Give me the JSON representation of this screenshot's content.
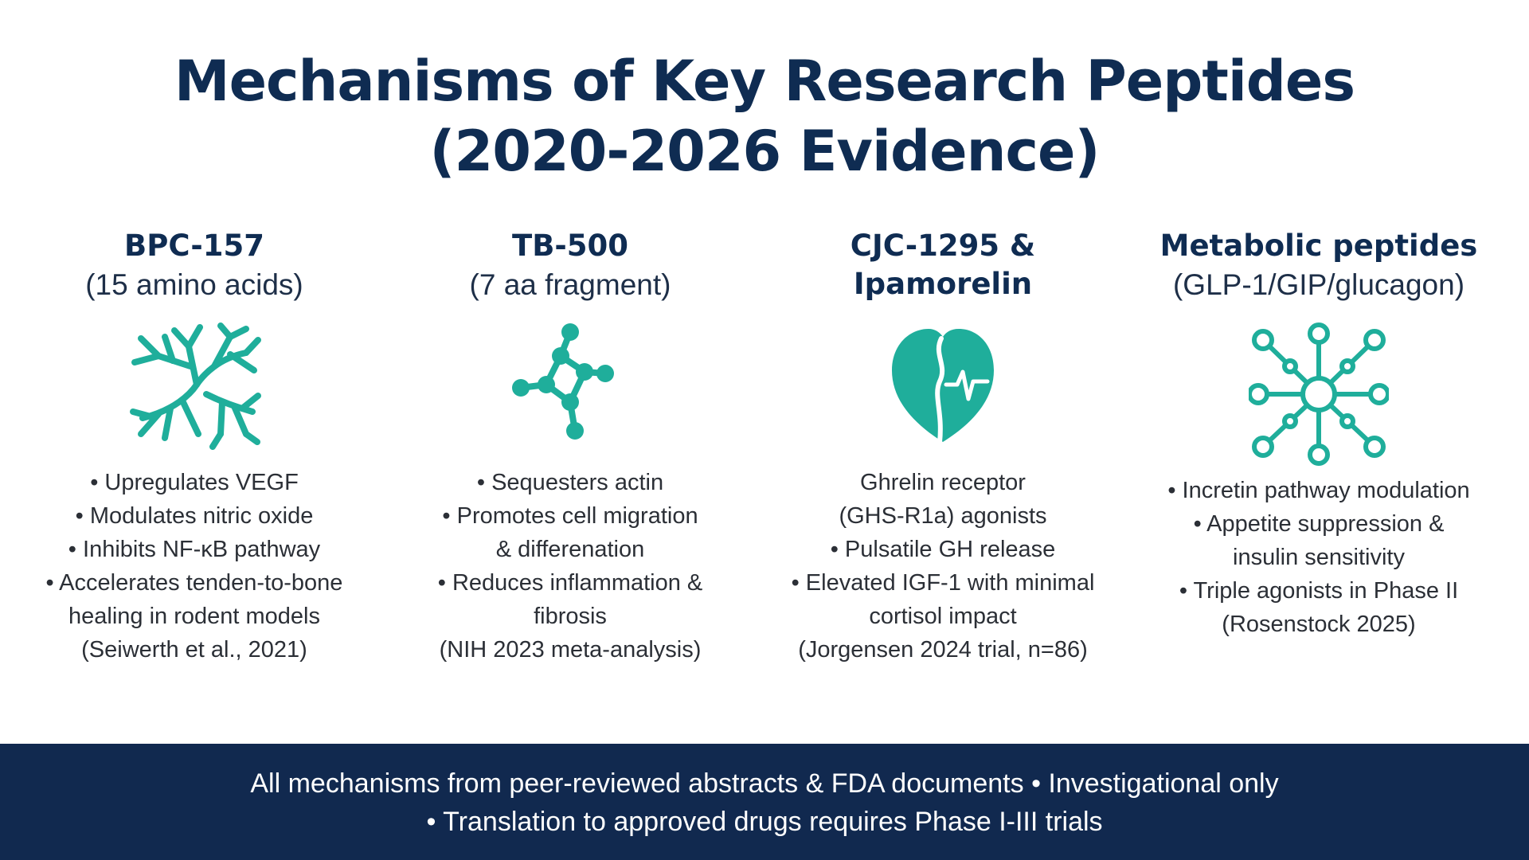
{
  "title": {
    "line1": "Mechanisms of Key Research Peptides",
    "line2": "(2020-2026 Evidence)"
  },
  "columns": [
    {
      "name": "BPC-157",
      "subtitle": "(15 amino acids)",
      "icon": "branching-neuron-icon",
      "bullets": [
        "• Upregulates VEGF",
        "• Modulates nitric oxide",
        "• Inhibits NF-κB pathway",
        "• Accelerates tenden-to-bone",
        "healing in rodent models",
        "(Seiwerth et al., 2021)"
      ]
    },
    {
      "name": "TB-500",
      "subtitle": "(7 aa fragment)",
      "icon": "molecule-chain-icon",
      "bullets": [
        "• Sequesters actin",
        "• Promotes cell migration",
        "& differenation",
        "• Reduces inflammation &",
        "fibrosis",
        "(NIH 2023 meta-analysis)"
      ]
    },
    {
      "name": "CJC-1295 &",
      "subtitle": "Ipamorelin",
      "icon": "heart-pulse-icon",
      "bullets": [
        "Ghrelin receptor",
        "(GHS-R1a) agonists",
        "• Pulsatile GH release",
        "• Elevated IGF-1 with minimal",
        "cortisol impact",
        "(Jorgensen 2024 trial, n=86)"
      ]
    },
    {
      "name": "Metabolic peptides",
      "subtitle": "(GLP-1/GIP/glucagon)",
      "icon": "network-hub-icon",
      "bullets": [
        "• Incretin pathway modulation",
        "• Appetite suppression &",
        "insulin sensitivity",
        "• Triple agonists in Phase II",
        "(Rosenstock 2025)"
      ]
    }
  ],
  "footer": {
    "line1": "All mechanisms from peer-reviewed abstracts & FDA documents • Investigational only",
    "line2": "• Translation to approved drugs requires Phase I-III trials"
  },
  "colors": {
    "navy": "#0f2c52",
    "teal": "#1fae9b",
    "footer_bg": "#11294f"
  }
}
